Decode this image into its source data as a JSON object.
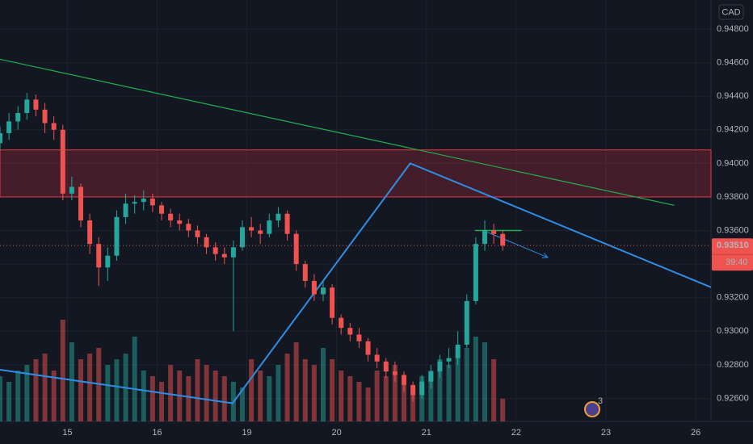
{
  "chart_data": {
    "type": "candlestick",
    "currency": "CAD",
    "xlim": [
      -0.75,
      7.17
    ],
    "ylim": [
      0.92463,
      0.94973
    ],
    "xticks": [
      {
        "value": 0,
        "label": "15"
      },
      {
        "value": 1,
        "label": "16"
      },
      {
        "value": 2,
        "label": "19"
      },
      {
        "value": 3,
        "label": "20"
      },
      {
        "value": 4,
        "label": "21"
      },
      {
        "value": 5,
        "label": "22"
      },
      {
        "value": 6,
        "label": "23"
      },
      {
        "value": 7,
        "label": "26"
      }
    ],
    "yticks": [
      {
        "value": 0.926,
        "label": "0.92600"
      },
      {
        "value": 0.928,
        "label": "0.92800"
      },
      {
        "value": 0.93,
        "label": "0.93000"
      },
      {
        "value": 0.932,
        "label": "0.93200"
      },
      {
        "value": 0.934,
        "label": "0.93400"
      },
      {
        "value": 0.936,
        "label": "0.93600"
      },
      {
        "value": 0.938,
        "label": "0.93800"
      },
      {
        "value": 0.94,
        "label": "0.94000"
      },
      {
        "value": 0.942,
        "label": "0.94200"
      },
      {
        "value": 0.944,
        "label": "0.94400"
      },
      {
        "value": 0.946,
        "label": "0.94600"
      },
      {
        "value": 0.948,
        "label": "0.94800"
      }
    ],
    "grid": true,
    "up_color": "#26a69a",
    "down_color": "#ef5350",
    "x": [
      -0.75,
      -0.65,
      -0.55,
      -0.45,
      -0.35,
      -0.25,
      -0.15,
      -0.05,
      0.05,
      0.15,
      0.25,
      0.35,
      0.45,
      0.55,
      0.65,
      0.75,
      0.85,
      0.95,
      1.05,
      1.15,
      1.25,
      1.35,
      1.45,
      1.55,
      1.65,
      1.75,
      1.85,
      1.95,
      2.05,
      2.15,
      2.25,
      2.35,
      2.45,
      2.55,
      2.65,
      2.75,
      2.85,
      2.95,
      3.05,
      3.15,
      3.25,
      3.35,
      3.45,
      3.55,
      3.65,
      3.75,
      3.85,
      3.95,
      4.05,
      4.15,
      4.25,
      4.35,
      4.45,
      4.55,
      4.65,
      4.75,
      4.85
    ],
    "candles": [
      [
        0.9412,
        0.9422,
        0.9408,
        0.9418
      ],
      [
        0.9418,
        0.943,
        0.9414,
        0.9425
      ],
      [
        0.9425,
        0.9434,
        0.942,
        0.943
      ],
      [
        0.943,
        0.9442,
        0.9426,
        0.9438
      ],
      [
        0.9438,
        0.9441,
        0.9428,
        0.9432
      ],
      [
        0.9432,
        0.9436,
        0.9418,
        0.9424
      ],
      [
        0.9424,
        0.9428,
        0.9414,
        0.942
      ],
      [
        0.942,
        0.9423,
        0.9378,
        0.9382
      ],
      [
        0.9382,
        0.9392,
        0.9378,
        0.9386
      ],
      [
        0.9386,
        0.9388,
        0.9362,
        0.9366
      ],
      [
        0.9366,
        0.937,
        0.9346,
        0.9352
      ],
      [
        0.9352,
        0.9356,
        0.9327,
        0.9338
      ],
      [
        0.9338,
        0.935,
        0.933,
        0.9345
      ],
      [
        0.9345,
        0.9372,
        0.9342,
        0.9368
      ],
      [
        0.9368,
        0.9382,
        0.9364,
        0.9376
      ],
      [
        0.9376,
        0.9381,
        0.937,
        0.9377
      ],
      [
        0.9377,
        0.9384,
        0.9372,
        0.9379
      ],
      [
        0.9379,
        0.9382,
        0.9371,
        0.9375
      ],
      [
        0.9375,
        0.9377,
        0.9366,
        0.937
      ],
      [
        0.937,
        0.9373,
        0.9362,
        0.9366
      ],
      [
        0.9366,
        0.937,
        0.936,
        0.9364
      ],
      [
        0.9364,
        0.9367,
        0.9356,
        0.936
      ],
      [
        0.936,
        0.9363,
        0.9352,
        0.9356
      ],
      [
        0.9356,
        0.9358,
        0.9346,
        0.935
      ],
      [
        0.935,
        0.9353,
        0.9342,
        0.9346
      ],
      [
        0.9346,
        0.935,
        0.934,
        0.9344
      ],
      [
        0.9344,
        0.9354,
        0.93,
        0.935
      ],
      [
        0.935,
        0.9366,
        0.9348,
        0.9362
      ],
      [
        0.9362,
        0.9368,
        0.9356,
        0.936
      ],
      [
        0.936,
        0.9364,
        0.9352,
        0.9358
      ],
      [
        0.9358,
        0.937,
        0.9356,
        0.9366
      ],
      [
        0.9366,
        0.9374,
        0.9362,
        0.937
      ],
      [
        0.937,
        0.9372,
        0.9354,
        0.9358
      ],
      [
        0.9358,
        0.936,
        0.9336,
        0.934
      ],
      [
        0.934,
        0.9342,
        0.9326,
        0.933
      ],
      [
        0.933,
        0.9334,
        0.9318,
        0.9322
      ],
      [
        0.9322,
        0.933,
        0.9318,
        0.9326
      ],
      [
        0.9326,
        0.9328,
        0.9304,
        0.9308
      ],
      [
        0.9308,
        0.931,
        0.9298,
        0.9302
      ],
      [
        0.9302,
        0.9305,
        0.9294,
        0.9298
      ],
      [
        0.9298,
        0.9302,
        0.929,
        0.9294
      ],
      [
        0.9294,
        0.9296,
        0.9282,
        0.9286
      ],
      [
        0.9286,
        0.929,
        0.9278,
        0.9282
      ],
      [
        0.9282,
        0.9284,
        0.9272,
        0.9276
      ],
      [
        0.9276,
        0.9282,
        0.927,
        0.9274
      ],
      [
        0.9274,
        0.9276,
        0.9264,
        0.9268
      ],
      [
        0.9268,
        0.927,
        0.9258,
        0.9262
      ],
      [
        0.9262,
        0.9274,
        0.926,
        0.927
      ],
      [
        0.927,
        0.928,
        0.9266,
        0.9276
      ],
      [
        0.9276,
        0.9286,
        0.9272,
        0.9282
      ],
      [
        0.9282,
        0.929,
        0.9278,
        0.9284
      ],
      [
        0.9284,
        0.93,
        0.928,
        0.9292
      ],
      [
        0.9292,
        0.9322,
        0.929,
        0.9318
      ],
      [
        0.9318,
        0.9356,
        0.9316,
        0.9352
      ],
      [
        0.9352,
        0.9366,
        0.9348,
        0.936
      ],
      [
        0.936,
        0.9364,
        0.9352,
        0.9358
      ],
      [
        0.9358,
        0.936,
        0.9348,
        0.9351
      ]
    ],
    "volume_ylim": [
      0,
      100
    ],
    "volume": [
      40,
      35,
      45,
      50,
      55,
      60,
      45,
      90,
      70,
      55,
      60,
      65,
      50,
      55,
      60,
      75,
      45,
      40,
      35,
      50,
      45,
      40,
      55,
      50,
      45,
      40,
      35,
      30,
      55,
      45,
      40,
      50,
      60,
      70,
      55,
      50,
      65,
      55,
      45,
      40,
      35,
      30,
      45,
      40,
      50,
      35,
      30,
      40,
      45,
      55,
      50,
      60,
      65,
      75,
      70,
      55,
      20
    ],
    "zone": {
      "ylim": [
        0.938,
        0.9408
      ],
      "color": "#f23645"
    },
    "trendline": {
      "color": "#22b14c",
      "x": [
        -0.75,
        6.76
      ],
      "y": [
        0.9462,
        0.9375
      ]
    },
    "zigzag": {
      "color": "#2e8ee6",
      "x": [
        -0.75,
        1.84,
        3.82,
        7.17
      ],
      "y": [
        0.92771,
        0.92571,
        0.94,
        0.93262
      ]
    },
    "level": {
      "color": "#22b14c",
      "x": [
        4.54,
        5.06
      ],
      "y": 0.936
    },
    "arrow": {
      "color": "#2e8ee6",
      "x": [
        4.68,
        5.35
      ],
      "y": [
        0.9359,
        0.9344
      ]
    },
    "last_price": {
      "value": 0.9351,
      "label": "0.93510"
    },
    "countdown": "39:40",
    "event_badge": "3"
  }
}
